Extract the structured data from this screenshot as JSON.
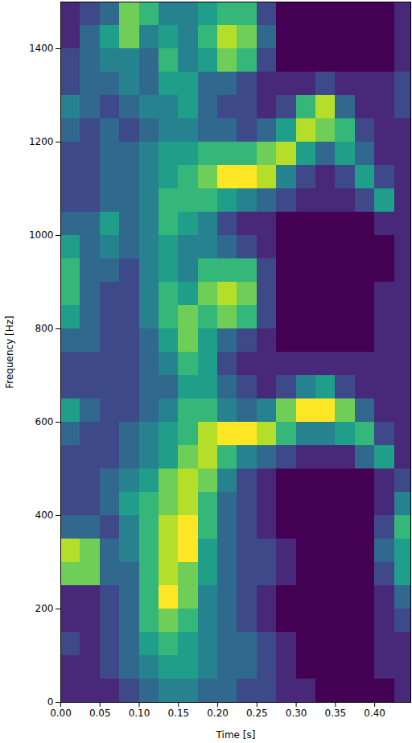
{
  "chart_data": {
    "type": "heatmap",
    "x_label": "Time [s]",
    "y_label": "Frequency [Hz]",
    "xlim": [
      0,
      0.446
    ],
    "ylim": [
      0,
      1500
    ],
    "xticks": [
      {
        "value": 0,
        "label": "0.00"
      },
      {
        "value": 0.05,
        "label": "0.05"
      },
      {
        "value": 0.1,
        "label": "0.10"
      },
      {
        "value": 0.15,
        "label": "0.15"
      },
      {
        "value": 0.2,
        "label": "0.20"
      },
      {
        "value": 0.25,
        "label": "0.25"
      },
      {
        "value": 0.3,
        "label": "0.30"
      },
      {
        "value": 0.35,
        "label": "0.35"
      },
      {
        "value": 0.4,
        "label": "0.40"
      }
    ],
    "yticks": [
      0,
      200,
      400,
      600,
      800,
      1000,
      1200,
      1400
    ],
    "color": "viridis",
    "zlim": [
      0,
      9
    ],
    "time_bins": [
      0,
      0.025,
      0.05,
      0.075,
      0.1,
      0.125,
      0.15,
      0.175,
      0.2,
      0.225,
      0.25,
      0.275,
      0.3,
      0.325,
      0.35,
      0.375,
      0.4,
      0.425,
      0.45
    ],
    "frequency_bins": [
      0,
      50,
      100,
      150,
      200,
      250,
      300,
      350,
      400,
      450,
      500,
      550,
      600,
      650,
      700,
      750,
      800,
      850,
      900,
      950,
      1000,
      1050,
      1100,
      1150,
      1200,
      1250,
      1300,
      1350,
      1400,
      1450,
      1500
    ],
    "values": [
      [
        1,
        1,
        1,
        2,
        3,
        4,
        4,
        3,
        3,
        2,
        2,
        1,
        1,
        0,
        0,
        0,
        0,
        1
      ],
      [
        1,
        1,
        2,
        3,
        4,
        5,
        5,
        4,
        3,
        3,
        2,
        1,
        0,
        0,
        0,
        0,
        1,
        1
      ],
      [
        2,
        1,
        2,
        3,
        5,
        6,
        5,
        4,
        3,
        3,
        2,
        1,
        0,
        0,
        0,
        0,
        1,
        1
      ],
      [
        1,
        1,
        2,
        3,
        6,
        7,
        6,
        4,
        3,
        2,
        1,
        0,
        0,
        0,
        0,
        0,
        1,
        2
      ],
      [
        1,
        1,
        2,
        3,
        6,
        9,
        7,
        4,
        3,
        2,
        1,
        0,
        0,
        0,
        0,
        0,
        1,
        3
      ],
      [
        7,
        7,
        3,
        3,
        6,
        8,
        7,
        5,
        3,
        2,
        2,
        1,
        0,
        0,
        0,
        0,
        2,
        5
      ],
      [
        8,
        7,
        3,
        4,
        6,
        8,
        9,
        5,
        3,
        2,
        2,
        1,
        0,
        0,
        0,
        0,
        3,
        5
      ],
      [
        3,
        3,
        2,
        4,
        6,
        8,
        9,
        6,
        3,
        2,
        1,
        0,
        0,
        0,
        0,
        0,
        2,
        6
      ],
      [
        2,
        2,
        3,
        5,
        6,
        7,
        8,
        6,
        3,
        2,
        1,
        0,
        0,
        0,
        0,
        0,
        1,
        4
      ],
      [
        2,
        2,
        3,
        4,
        5,
        7,
        8,
        7,
        4,
        2,
        1,
        0,
        0,
        0,
        0,
        0,
        1,
        2
      ],
      [
        2,
        2,
        2,
        3,
        4,
        5,
        7,
        8,
        6,
        4,
        3,
        2,
        1,
        1,
        1,
        3,
        5,
        1
      ],
      [
        3,
        2,
        2,
        3,
        4,
        5,
        6,
        8,
        9,
        9,
        8,
        6,
        4,
        4,
        5,
        6,
        2,
        1
      ],
      [
        5,
        3,
        2,
        2,
        3,
        4,
        6,
        6,
        4,
        3,
        4,
        7,
        9,
        9,
        7,
        3,
        1,
        1
      ],
      [
        2,
        2,
        2,
        2,
        3,
        3,
        5,
        5,
        3,
        2,
        1,
        2,
        4,
        5,
        2,
        1,
        1,
        1
      ],
      [
        2,
        2,
        2,
        2,
        3,
        4,
        6,
        5,
        2,
        1,
        1,
        1,
        1,
        1,
        1,
        1,
        1,
        1
      ],
      [
        3,
        3,
        2,
        2,
        3,
        5,
        7,
        5,
        3,
        2,
        1,
        0,
        0,
        0,
        0,
        0,
        1,
        1
      ],
      [
        5,
        3,
        2,
        2,
        4,
        6,
        7,
        6,
        7,
        6,
        2,
        0,
        0,
        0,
        0,
        0,
        1,
        1
      ],
      [
        6,
        3,
        2,
        2,
        4,
        6,
        5,
        7,
        8,
        7,
        2,
        0,
        0,
        0,
        0,
        0,
        1,
        1
      ],
      [
        6,
        3,
        3,
        2,
        4,
        5,
        4,
        6,
        6,
        6,
        2,
        0,
        0,
        0,
        0,
        0,
        0,
        1
      ],
      [
        5,
        3,
        4,
        3,
        4,
        5,
        4,
        4,
        3,
        2,
        1,
        0,
        0,
        0,
        0,
        0,
        0,
        1
      ],
      [
        3,
        3,
        5,
        3,
        4,
        6,
        5,
        4,
        2,
        1,
        1,
        0,
        0,
        0,
        0,
        0,
        1,
        1
      ],
      [
        2,
        2,
        3,
        3,
        4,
        6,
        6,
        6,
        5,
        4,
        3,
        2,
        1,
        1,
        1,
        2,
        5,
        1
      ],
      [
        2,
        2,
        3,
        3,
        4,
        5,
        6,
        7,
        9,
        9,
        8,
        4,
        2,
        1,
        2,
        5,
        2,
        1
      ],
      [
        2,
        2,
        3,
        3,
        4,
        5,
        5,
        6,
        6,
        6,
        7,
        8,
        5,
        3,
        5,
        3,
        1,
        1
      ],
      [
        3,
        2,
        3,
        2,
        3,
        4,
        4,
        3,
        3,
        2,
        3,
        5,
        8,
        7,
        6,
        2,
        1,
        1
      ],
      [
        4,
        3,
        2,
        3,
        4,
        4,
        5,
        3,
        2,
        2,
        1,
        2,
        6,
        8,
        3,
        1,
        1,
        2
      ],
      [
        2,
        3,
        3,
        4,
        3,
        5,
        5,
        3,
        3,
        2,
        1,
        1,
        1,
        2,
        1,
        1,
        1,
        2
      ],
      [
        2,
        3,
        4,
        4,
        3,
        6,
        4,
        5,
        7,
        6,
        2,
        0,
        0,
        0,
        0,
        0,
        0,
        1
      ],
      [
        1,
        3,
        5,
        7,
        4,
        5,
        4,
        6,
        8,
        7,
        3,
        0,
        0,
        0,
        0,
        0,
        0,
        1
      ],
      [
        1,
        2,
        3,
        7,
        6,
        4,
        4,
        5,
        6,
        6,
        2,
        0,
        0,
        0,
        0,
        0,
        0,
        1
      ]
    ]
  }
}
